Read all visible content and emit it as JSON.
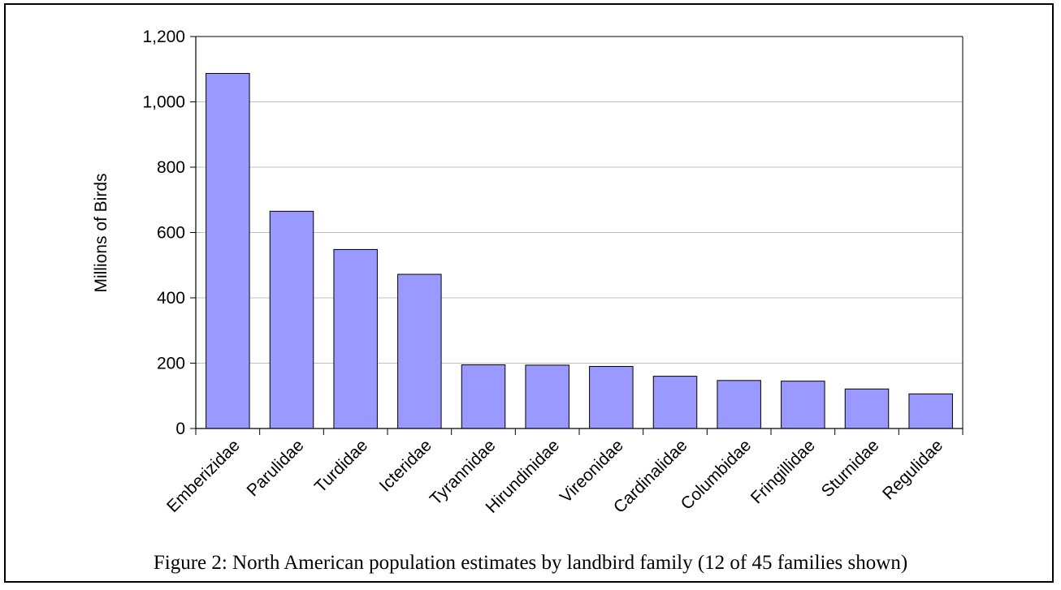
{
  "caption": "Figure 2:  North American population estimates by landbird family (12 of 45 families shown)",
  "colors": {
    "bar_fill": "#9999ff",
    "bar_stroke": "#000000",
    "grid": "#c0c0c0"
  },
  "chart_data": {
    "type": "bar",
    "title": "",
    "xlabel": "",
    "ylabel": "Millions of Birds",
    "ylim": [
      0,
      1200
    ],
    "yticks": [
      0,
      200,
      400,
      600,
      800,
      1000,
      1200
    ],
    "ytick_labels": [
      "0",
      "200",
      "400",
      "600",
      "800",
      "1,000",
      "1,200"
    ],
    "grid": true,
    "legend": "none",
    "categories": [
      "Emberizidae",
      "Parulidae",
      "Turdidae",
      "Icteridae",
      "Tyrannidae",
      "Hirundinidae",
      "Vireonidae",
      "Cardinalidae",
      "Columbidae",
      "Fringillidae",
      "Sturnidae",
      "Regulidae"
    ],
    "values": [
      1087,
      665,
      548,
      472,
      195,
      194,
      190,
      160,
      147,
      145,
      121,
      106
    ]
  }
}
